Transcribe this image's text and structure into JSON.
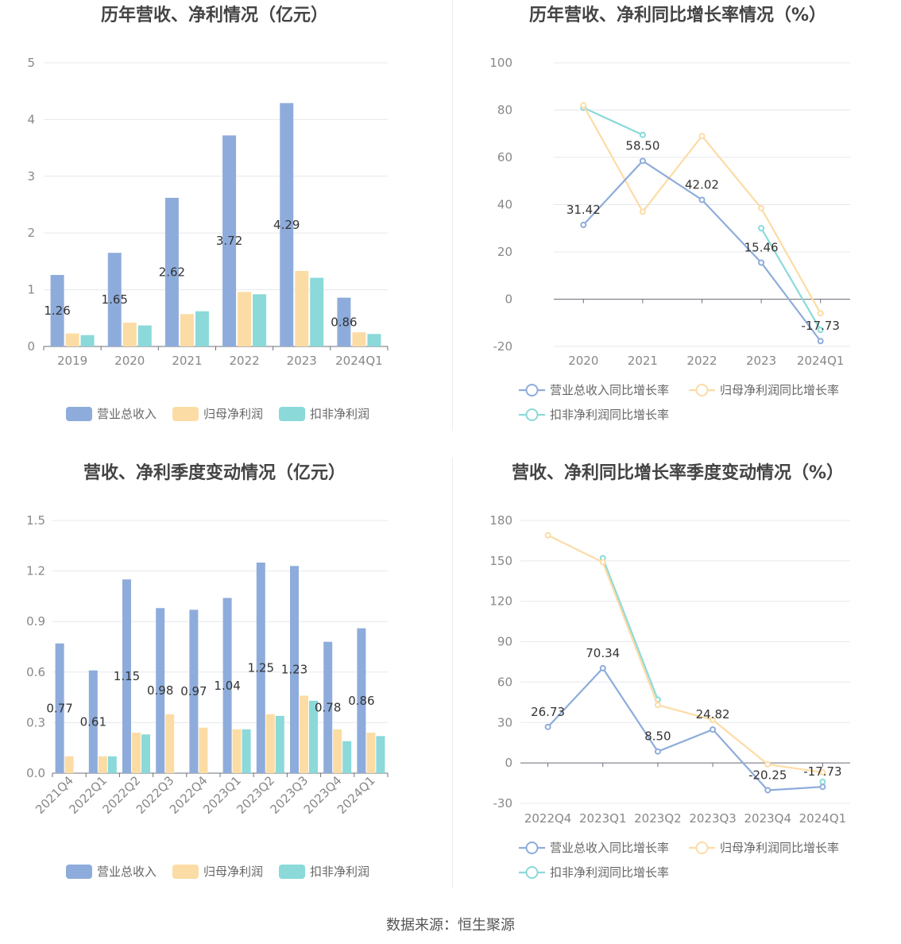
{
  "colors": {
    "revenue": "#8eacdb",
    "netprofit": "#fcdca5",
    "deducted": "#8bd9d9"
  },
  "source": "数据来源：恒生聚源",
  "chart_data": [
    {
      "type": "bar",
      "title": "历年营收、净利情况（亿元）",
      "categories": [
        "2019",
        "2020",
        "2021",
        "2022",
        "2023",
        "2024Q1"
      ],
      "ylim": [
        0,
        5
      ],
      "yticks": [
        0,
        1,
        2,
        3,
        4,
        5
      ],
      "tick_decimals": 0,
      "label_decimals": 2,
      "label_series": 0,
      "series": [
        {
          "name": "营业总收入",
          "values": [
            1.26,
            1.65,
            2.62,
            3.72,
            4.29,
            0.86
          ]
        },
        {
          "name": "归母净利润",
          "values": [
            0.23,
            0.42,
            0.57,
            0.96,
            1.33,
            0.25
          ]
        },
        {
          "name": "扣非净利润",
          "values": [
            0.2,
            0.37,
            0.62,
            0.92,
            1.21,
            0.22
          ]
        }
      ],
      "legend": "bottom"
    },
    {
      "type": "line",
      "title": "历年营收、净利同比增长率情况（%）",
      "categories": [
        "2020",
        "2021",
        "2022",
        "2023",
        "2024Q1"
      ],
      "ylim": [
        -20,
        100
      ],
      "yticks": [
        -20,
        0,
        20,
        40,
        60,
        80,
        100
      ],
      "tick_decimals": 0,
      "label_decimals": 2,
      "label_series": 0,
      "series": [
        {
          "name": "营业总收入同比增长率",
          "values": [
            31.42,
            58.5,
            42.02,
            15.46,
            -17.73
          ]
        },
        {
          "name": "归母净利润同比增长率",
          "values": [
            82.0,
            37.0,
            69.0,
            38.5,
            -6.0
          ]
        },
        {
          "name": "扣非净利润同比增长率",
          "values": [
            81.0,
            69.5,
            null,
            30.0,
            -13.0
          ]
        }
      ],
      "legend": "bottom"
    },
    {
      "type": "bar",
      "title": "营收、净利季度变动情况（亿元）",
      "categories": [
        "2021Q4",
        "2022Q1",
        "2022Q2",
        "2022Q3",
        "2022Q4",
        "2023Q1",
        "2023Q2",
        "2023Q3",
        "2023Q4",
        "2024Q1"
      ],
      "ylim": [
        0,
        1.5
      ],
      "yticks": [
        0,
        0.3,
        0.6,
        0.9,
        1.2,
        1.5
      ],
      "tick_decimals": 1,
      "label_decimals": 2,
      "label_series": 0,
      "rotate_x": true,
      "series": [
        {
          "name": "营业总收入",
          "values": [
            0.77,
            0.61,
            1.15,
            0.98,
            0.97,
            1.04,
            1.25,
            1.23,
            0.78,
            0.86
          ]
        },
        {
          "name": "归母净利润",
          "values": [
            0.1,
            0.1,
            0.24,
            0.35,
            0.27,
            0.26,
            0.35,
            0.46,
            0.26,
            0.24
          ]
        },
        {
          "name": "扣非净利润",
          "values": [
            null,
            0.1,
            0.23,
            null,
            null,
            0.26,
            0.34,
            0.43,
            0.19,
            0.22
          ]
        }
      ],
      "legend": "bottom"
    },
    {
      "type": "line",
      "title": "营收、净利同比增长率季度变动情况（%）",
      "categories": [
        "2022Q4",
        "2023Q1",
        "2023Q2",
        "2023Q3",
        "2023Q4",
        "2024Q1"
      ],
      "ylim": [
        -30,
        180
      ],
      "yticks": [
        -30,
        0,
        30,
        60,
        90,
        120,
        150,
        180
      ],
      "tick_decimals": 0,
      "label_decimals": 2,
      "label_series": 0,
      "series": [
        {
          "name": "营业总收入同比增长率",
          "values": [
            26.73,
            70.34,
            8.5,
            24.82,
            -20.25,
            -17.73
          ]
        },
        {
          "name": "归母净利润同比增长率",
          "values": [
            169.0,
            149.0,
            43.0,
            32.0,
            -1.0,
            -7.0
          ]
        },
        {
          "name": "扣非净利润同比增长率",
          "values": [
            null,
            152.0,
            47.0,
            null,
            null,
            -14.0
          ]
        }
      ],
      "legend": "bottom"
    }
  ]
}
